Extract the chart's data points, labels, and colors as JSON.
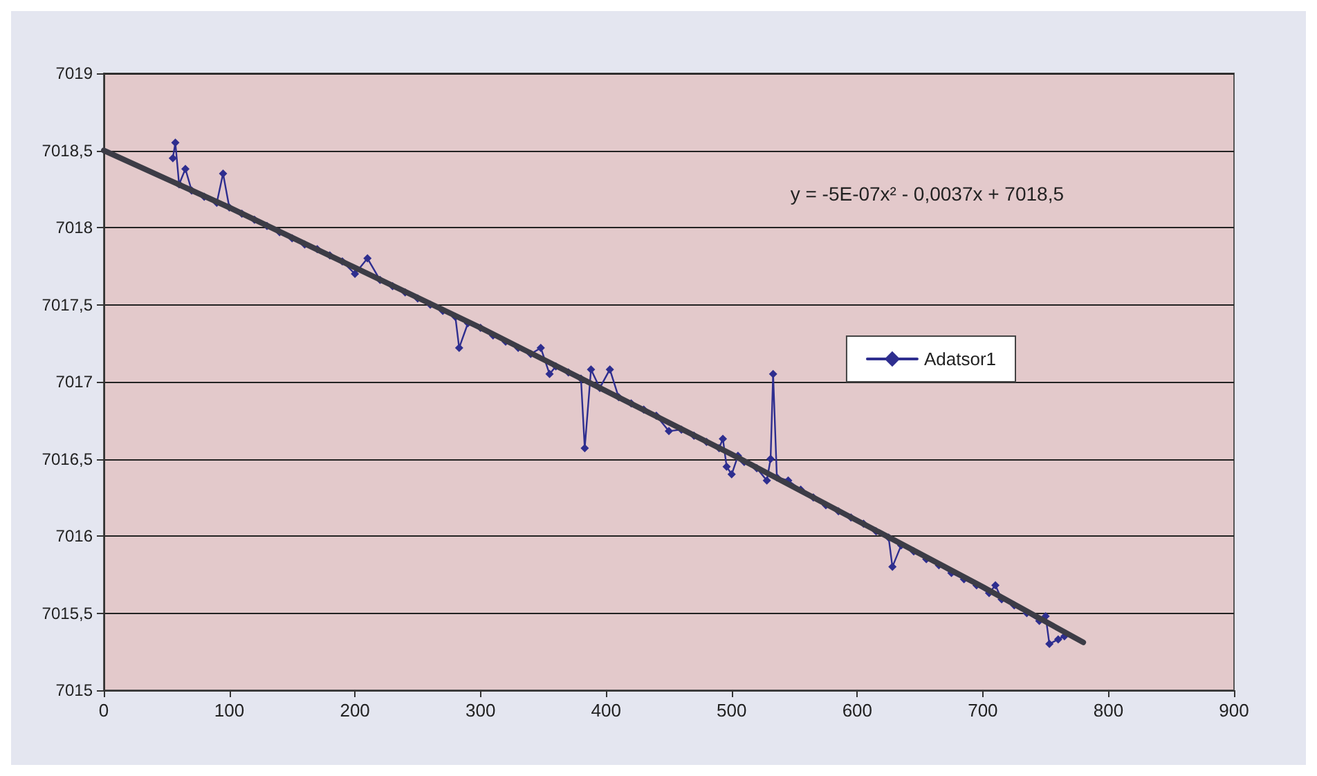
{
  "chart_data": {
    "type": "line",
    "annotations": [
      "y = -5E-07x² - 0,0037x + 7018,5"
    ],
    "xlim": [
      0,
      900
    ],
    "xticks": [
      0,
      100,
      200,
      300,
      400,
      500,
      600,
      700,
      800,
      900
    ],
    "ylim": [
      7015,
      7019
    ],
    "yticks": [
      7015,
      {
        "value": 7015.5,
        "label": "7015,5"
      },
      7016,
      {
        "value": 7016.5,
        "label": "7016,5"
      },
      7017,
      {
        "value": 7017.5,
        "label": "7017,5"
      },
      7018,
      {
        "value": 7018.5,
        "label": "7018,5"
      },
      7019
    ],
    "grid": "y",
    "legend": "right",
    "marker": "diamond",
    "line_style": "solid",
    "series": [
      {
        "name": "Adatsor1",
        "color": "#2e2e8f",
        "x": [
          55,
          57,
          60,
          65,
          70,
          80,
          90,
          95,
          100,
          110,
          120,
          130,
          140,
          150,
          160,
          170,
          180,
          190,
          200,
          210,
          220,
          230,
          240,
          250,
          260,
          270,
          280,
          283,
          290,
          300,
          310,
          320,
          330,
          340,
          348,
          355,
          360,
          370,
          380,
          383,
          388,
          395,
          403,
          410,
          420,
          430,
          440,
          450,
          460,
          470,
          480,
          490,
          493,
          496,
          500,
          505,
          510,
          520,
          528,
          531,
          533,
          536,
          545,
          555,
          565,
          575,
          585,
          595,
          605,
          615,
          625,
          628,
          635,
          645,
          655,
          665,
          675,
          685,
          695,
          705,
          710,
          715,
          725,
          735,
          745,
          750,
          753,
          760,
          765
        ],
        "values": [
          7018.45,
          7018.55,
          7018.28,
          7018.38,
          7018.24,
          7018.2,
          7018.16,
          7018.35,
          7018.13,
          7018.09,
          7018.05,
          7018.01,
          7017.97,
          7017.93,
          7017.89,
          7017.86,
          7017.82,
          7017.78,
          7017.7,
          7017.8,
          7017.66,
          7017.62,
          7017.58,
          7017.54,
          7017.5,
          7017.46,
          7017.42,
          7017.22,
          7017.38,
          7017.35,
          7017.3,
          7017.26,
          7017.22,
          7017.18,
          7017.22,
          7017.05,
          7017.1,
          7017.06,
          7017.02,
          7016.57,
          7017.08,
          7016.96,
          7017.08,
          7016.9,
          7016.86,
          7016.82,
          7016.78,
          7016.68,
          7016.69,
          7016.65,
          7016.61,
          7016.57,
          7016.63,
          7016.45,
          7016.4,
          7016.52,
          7016.48,
          7016.44,
          7016.36,
          7016.5,
          7017.05,
          7016.38,
          7016.36,
          7016.3,
          7016.25,
          7016.2,
          7016.16,
          7016.12,
          7016.08,
          7016.03,
          7015.99,
          7015.8,
          7015.94,
          7015.9,
          7015.85,
          7015.81,
          7015.76,
          7015.72,
          7015.68,
          7015.63,
          7015.68,
          7015.59,
          7015.55,
          7015.5,
          7015.45,
          7015.48,
          7015.3,
          7015.33,
          7015.35
        ]
      },
      {
        "type": "line",
        "color": "#3c3c46",
        "marker": "none",
        "x": [
          0,
          100,
          200,
          300,
          400,
          500,
          600,
          700,
          780
        ],
        "values": [
          7018.5,
          7018.13,
          7017.74,
          7017.35,
          7016.94,
          7016.53,
          7016.1,
          7015.67,
          7015.31
        ]
      }
    ]
  }
}
